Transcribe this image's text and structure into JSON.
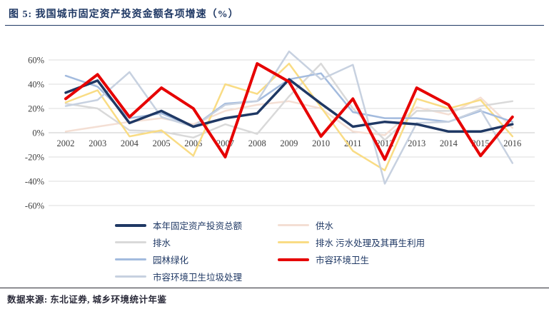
{
  "title": "图 5: 我国城市固定资产投资金额各项增速（%）",
  "footer": {
    "source": "数据来源: 东北证券, 城乡环境统计年鉴"
  },
  "axis_colors": {
    "grid": "#DCDCDC",
    "zero_line": "#C9C9C9",
    "tick_text": "#3F3F3F"
  },
  "chart_data": {
    "type": "line",
    "title": "我国城市固定资产投资金额各项增速（%）",
    "x_label": "",
    "y_label": "",
    "ylim": [
      -60,
      60
    ],
    "grid": "horizontal",
    "legend_position": "bottom",
    "yticks": [
      {
        "value": 60,
        "label": "60%"
      },
      {
        "value": 40,
        "label": "40%"
      },
      {
        "value": 20,
        "label": "20%"
      },
      {
        "value": 0,
        "label": "0%"
      },
      {
        "value": -20,
        "label": "-20%"
      },
      {
        "value": -40,
        "label": "-40%"
      },
      {
        "value": -60,
        "label": "-60%"
      }
    ],
    "categories": [
      "2002",
      "2003",
      "2004",
      "2005",
      "2006",
      "2007",
      "2008",
      "2009",
      "2010",
      "2011",
      "2012",
      "2013",
      "2014",
      "2015",
      "2016"
    ],
    "series": [
      {
        "name": "本年固定资产投资总额",
        "color": "#1F3864",
        "line_width": 3.5,
        "values": [
          33,
          43,
          8,
          18,
          5,
          12,
          16,
          44,
          24,
          5,
          9,
          7,
          1,
          1,
          7
        ]
      },
      {
        "name": "供水",
        "color": "#F4DFD4",
        "line_width": 2.5,
        "values": [
          1,
          5,
          9,
          12,
          7,
          18,
          23,
          26,
          20,
          1,
          -2,
          21,
          15,
          29,
          4
        ]
      },
      {
        "name": "排水",
        "color": "#D9D9D9",
        "line_width": 2.5,
        "values": [
          24,
          20,
          2,
          1,
          -4,
          7,
          -1,
          30,
          57,
          20,
          -6,
          18,
          18,
          22,
          26
        ]
      },
      {
        "name": "排水 污水处理及其再生利用",
        "color": "#F9DC84",
        "line_width": 2.5,
        "values": [
          25,
          35,
          -3,
          2,
          -19,
          40,
          32,
          57,
          21,
          -15,
          -31,
          28,
          20,
          27,
          -3
        ]
      },
      {
        "name": "园林绿化",
        "color": "#A3BBDE",
        "line_width": 2.5,
        "values": [
          47,
          38,
          12,
          16,
          5,
          24,
          26,
          44,
          49,
          17,
          12,
          12,
          9,
          18,
          9
        ]
      },
      {
        "name": "市容环境卫生",
        "color": "#E60000",
        "line_width": 4,
        "values": [
          28,
          48,
          13,
          37,
          20,
          -20,
          57,
          42,
          -3,
          28,
          -22,
          37,
          23,
          -19,
          13
        ]
      },
      {
        "name": "市容环境卫生垃圾处理",
        "color": "#C7D1E0",
        "line_width": 2.5,
        "values": [
          22,
          27,
          50,
          13,
          5,
          23,
          26,
          67,
          44,
          56,
          -42,
          8,
          9,
          19,
          -25
        ]
      }
    ]
  }
}
